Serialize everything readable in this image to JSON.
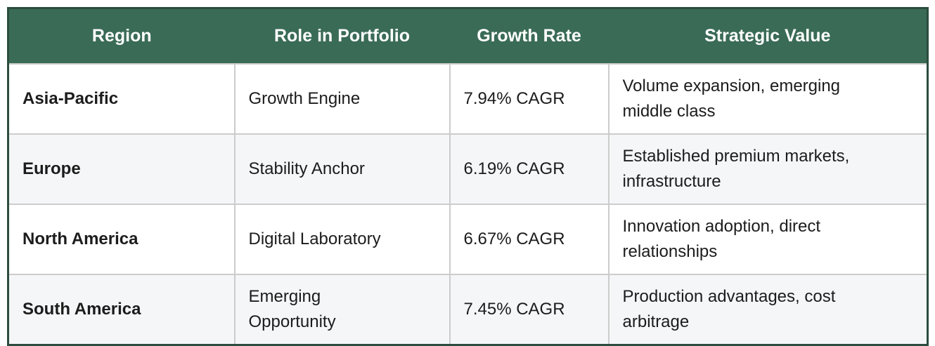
{
  "table": {
    "headers": [
      "Region",
      "Role in Portfolio",
      "Growth Rate",
      "Strategic Value"
    ],
    "rows": [
      {
        "region": "Asia-Pacific",
        "role": "Growth Engine",
        "growth_rate": "7.94% CAGR",
        "strategic_value": "Volume expansion, emerging middle class"
      },
      {
        "region": "Europe",
        "role": "Stability Anchor",
        "growth_rate": "6.19% CAGR",
        "strategic_value": "Established premium markets, infrastructure"
      },
      {
        "region": "North America",
        "role": "Digital Laboratory",
        "growth_rate": "6.67% CAGR",
        "strategic_value": "Innovation adoption, direct relationships"
      },
      {
        "region": "South America",
        "role": "Emerging Opportunity",
        "growth_rate": "7.45% CAGR",
        "strategic_value": "Production advantages, cost arbitrage"
      }
    ]
  },
  "colors": {
    "header_bg": "#3a6b57",
    "header_text": "#ffffff",
    "outer_border": "#2b4d3f",
    "cell_divider": "#cccccc",
    "row_bg": "#ffffff",
    "row_alt_bg": "#f5f6f8",
    "body_text": "#1c1c1c"
  }
}
